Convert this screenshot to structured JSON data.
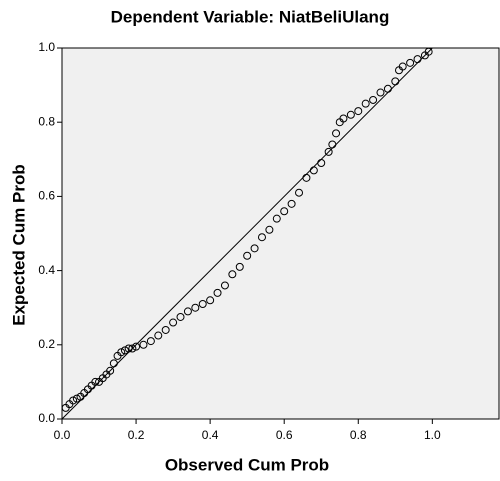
{
  "chart_data": {
    "type": "scatter",
    "title": "Dependent Variable: NiatBeliUlang",
    "xlabel": "Observed Cum Prob",
    "ylabel": "Expected Cum Prob",
    "xlim": [
      0,
      1.18
    ],
    "ylim": [
      0,
      1
    ],
    "xticks": [
      {
        "value": 0,
        "label": "0.0"
      },
      0.2,
      0.4,
      0.6,
      0.8,
      {
        "value": 1,
        "label": "1.0"
      }
    ],
    "yticks": [
      {
        "value": 0,
        "label": "0.0"
      },
      0.2,
      0.4,
      0.6,
      0.8,
      {
        "value": 1,
        "label": "1.0"
      }
    ],
    "grid": false,
    "color": "#000000",
    "background": "#f0f0f0",
    "reference_line": {
      "x": [
        0,
        1
      ],
      "y": [
        0,
        1
      ]
    },
    "x": [
      0.01,
      0.02,
      0.03,
      0.04,
      0.05,
      0.06,
      0.07,
      0.08,
      0.09,
      0.1,
      0.11,
      0.12,
      0.13,
      0.14,
      0.15,
      0.16,
      0.17,
      0.18,
      0.19,
      0.2,
      0.22,
      0.24,
      0.26,
      0.28,
      0.3,
      0.32,
      0.34,
      0.36,
      0.38,
      0.4,
      0.42,
      0.44,
      0.46,
      0.48,
      0.5,
      0.52,
      0.54,
      0.56,
      0.58,
      0.6,
      0.62,
      0.64,
      0.66,
      0.68,
      0.7,
      0.72,
      0.73,
      0.74,
      0.75,
      0.76,
      0.78,
      0.8,
      0.82,
      0.84,
      0.86,
      0.88,
      0.9,
      0.91,
      0.92,
      0.94,
      0.96,
      0.98,
      0.99
    ],
    "values": [
      0.03,
      0.04,
      0.05,
      0.055,
      0.06,
      0.07,
      0.08,
      0.09,
      0.1,
      0.1,
      0.11,
      0.12,
      0.13,
      0.15,
      0.17,
      0.18,
      0.185,
      0.19,
      0.19,
      0.195,
      0.2,
      0.21,
      0.225,
      0.24,
      0.26,
      0.275,
      0.29,
      0.3,
      0.31,
      0.32,
      0.34,
      0.36,
      0.39,
      0.41,
      0.44,
      0.46,
      0.49,
      0.51,
      0.54,
      0.56,
      0.58,
      0.61,
      0.65,
      0.67,
      0.69,
      0.72,
      0.74,
      0.77,
      0.8,
      0.81,
      0.82,
      0.83,
      0.85,
      0.86,
      0.88,
      0.89,
      0.91,
      0.94,
      0.95,
      0.96,
      0.97,
      0.98,
      0.99
    ]
  }
}
